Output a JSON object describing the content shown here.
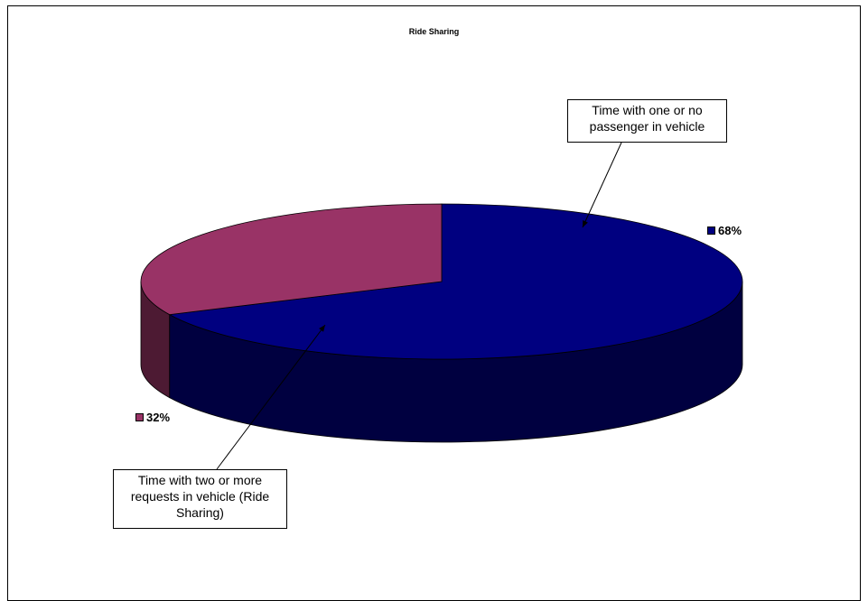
{
  "chart_data": {
    "type": "pie",
    "title": "Ride Sharing",
    "slices": [
      {
        "label": "Time with one or no passenger in vehicle",
        "value": 68,
        "data_label": "68%",
        "color": "#000080",
        "side_color": "#000040"
      },
      {
        "label": "Time with two or more requests in vehicle (Ride Sharing)",
        "value": 32,
        "data_label": "32%",
        "color": "#993366",
        "side_color": "#4d1a33"
      }
    ],
    "three_d": true,
    "legend": "none"
  },
  "callouts": {
    "slice_a_line1": "Time with one or no",
    "slice_a_line2": "passenger in vehicle",
    "slice_b_line1": "Time with two or more",
    "slice_b_line2": "requests in vehicle (Ride",
    "slice_b_line3": "Sharing)"
  }
}
